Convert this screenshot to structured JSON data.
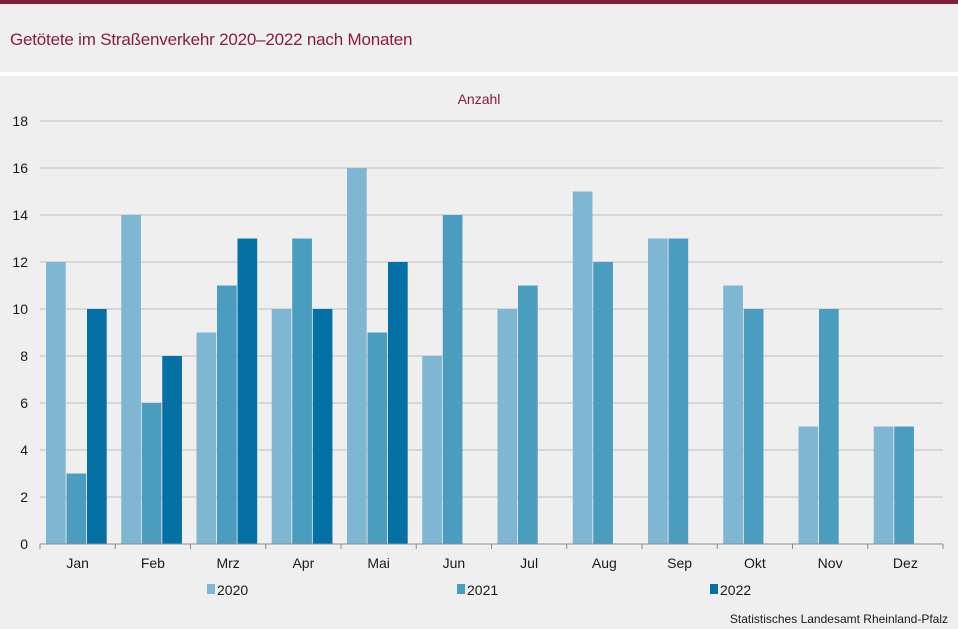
{
  "title": "Getötete im Straßenverkehr 2020–2022 nach Monaten",
  "source": "Statistisches Landesamt  Rheinland-Pfalz",
  "colors": {
    "title": "#8b1c3f",
    "accent_rule": "#7f1f3a",
    "series": [
      "#7fb6d2",
      "#4b9dc0",
      "#0570a3"
    ]
  },
  "chart_data": {
    "type": "bar",
    "ylabel": "Anzahl",
    "ylim": [
      0,
      18
    ],
    "yticks": [
      0,
      2,
      4,
      6,
      8,
      10,
      12,
      14,
      16,
      18
    ],
    "grid": true,
    "legend_position": "bottom",
    "categories": [
      "Jan",
      "Feb",
      "Mrz",
      "Apr",
      "Mai",
      "Jun",
      "Jul",
      "Aug",
      "Sep",
      "Okt",
      "Nov",
      "Dez"
    ],
    "series": [
      {
        "name": "2020",
        "values": [
          12,
          14,
          9,
          10,
          16,
          8,
          10,
          15,
          13,
          11,
          5,
          5
        ]
      },
      {
        "name": "2021",
        "values": [
          3,
          6,
          11,
          13,
          9,
          14,
          11,
          12,
          13,
          10,
          10,
          5
        ]
      },
      {
        "name": "2022",
        "values": [
          10,
          8,
          13,
          10,
          12,
          null,
          null,
          null,
          null,
          null,
          null,
          null
        ]
      }
    ]
  }
}
